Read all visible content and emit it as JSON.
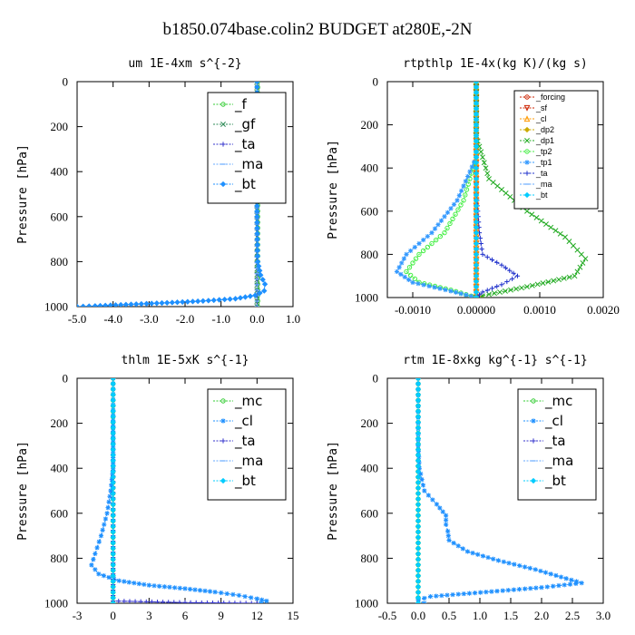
{
  "title": "b1850.074base.colin2  BUDGET at280E,-2N",
  "chart_data": [
    {
      "type": "line",
      "title": "um  1E-4xm s^{-2}",
      "ylabel": "Pressure [hPa]",
      "xlim": [
        -5.0,
        1.0
      ],
      "ylim": [
        0,
        1000
      ],
      "y_inverted": true,
      "xticks": [
        "-5.0",
        "-4.0",
        "-3.0",
        "-2.0",
        "-1.0",
        "0.0",
        "1.0"
      ],
      "yticks": [
        "0",
        "200",
        "400",
        "600",
        "800",
        "1000"
      ],
      "legend_style": "big",
      "legend_position": "top-right",
      "series": [
        {
          "name": "_f",
          "color": "#33cc33",
          "marker": "circle",
          "points": [
            [
              0.02,
              0
            ],
            [
              0.02,
              200
            ],
            [
              0.02,
              400
            ],
            [
              0.02,
              600
            ],
            [
              0.02,
              800
            ],
            [
              0.02,
              1000
            ]
          ]
        },
        {
          "name": "_gf",
          "color": "#2e8b57",
          "marker": "x",
          "points": [
            [
              0.0,
              0
            ],
            [
              0.0,
              500
            ],
            [
              0.0,
              1000
            ]
          ]
        },
        {
          "name": "_ta",
          "color": "#3333cc",
          "marker": "plus",
          "points": [
            [
              0.0,
              0
            ],
            [
              0.0,
              1000
            ]
          ]
        },
        {
          "name": "_ma",
          "color": "#66aaff",
          "marker": "dash",
          "points": [
            [
              0.0,
              0
            ],
            [
              0.0,
              1000
            ]
          ]
        },
        {
          "name": "_bt",
          "color": "#1e90ff",
          "marker": "diamond",
          "points": [
            [
              0.0,
              0
            ],
            [
              0.0,
              600
            ],
            [
              0.02,
              800
            ],
            [
              0.1,
              860
            ],
            [
              0.22,
              900
            ],
            [
              0.2,
              930
            ],
            [
              -0.05,
              950
            ],
            [
              -0.6,
              965
            ],
            [
              -1.5,
              975
            ],
            [
              -2.5,
              983
            ],
            [
              -3.5,
              990
            ],
            [
              -4.5,
              997
            ],
            [
              -5.0,
              1000
            ]
          ]
        }
      ]
    },
    {
      "type": "line",
      "title": "rtpthlp  1E-4x(kg K)/(kg s)",
      "ylabel": "Pressure [hPa]",
      "xlim": [
        -0.0014,
        0.002
      ],
      "ylim": [
        0,
        1000
      ],
      "y_inverted": true,
      "xticks": [
        "-0.0010",
        "0.00000",
        "0.0010",
        "0.0020"
      ],
      "yticks": [
        "0",
        "200",
        "400",
        "600",
        "800",
        "1000"
      ],
      "legend_style": "small",
      "legend_position": "top-right",
      "series": [
        {
          "name": "_forcing",
          "color": "#cc2200",
          "marker": "circle",
          "points": [
            [
              0.0,
              0
            ],
            [
              0.0,
              1000
            ]
          ]
        },
        {
          "name": "_sf",
          "color": "#cc2200",
          "marker": "triangle-down",
          "points": [
            [
              0.0,
              0
            ],
            [
              0.0,
              1000
            ]
          ]
        },
        {
          "name": "_cl",
          "color": "#ff9900",
          "marker": "triangle",
          "points": [
            [
              0.0,
              0
            ],
            [
              0.0,
              980
            ],
            [
              0.0001,
              1000
            ]
          ]
        },
        {
          "name": "_dp2",
          "color": "#ccaa00",
          "marker": "diamond",
          "points": [
            [
              0.0,
              0
            ],
            [
              0.0,
              1000
            ]
          ]
        },
        {
          "name": "_dp1",
          "color": "#22aa22",
          "marker": "x",
          "points": [
            [
              0.0,
              0
            ],
            [
              0.0,
              250
            ],
            [
              0.0002,
              450
            ],
            [
              0.0008,
              600
            ],
            [
              0.0014,
              720
            ],
            [
              0.00172,
              820
            ],
            [
              0.00155,
              900
            ],
            [
              0.0008,
              950
            ],
            [
              0.0002,
              985
            ],
            [
              0.0,
              1000
            ]
          ]
        },
        {
          "name": "_tp2",
          "color": "#44ee44",
          "marker": "circle",
          "points": [
            [
              0.0,
              0
            ],
            [
              0.0,
              350
            ],
            [
              -0.0002,
              550
            ],
            [
              -0.0005,
              700
            ],
            [
              -0.0009,
              800
            ],
            [
              -0.0011,
              880
            ],
            [
              -0.0009,
              930
            ],
            [
              -0.0004,
              965
            ],
            [
              0.0,
              1000
            ]
          ]
        },
        {
          "name": "_tp1",
          "color": "#3399ff",
          "marker": "star",
          "points": [
            [
              0.0,
              0
            ],
            [
              0.0,
              350
            ],
            [
              -0.0003,
              550
            ],
            [
              -0.0007,
              700
            ],
            [
              -0.0011,
              800
            ],
            [
              -0.00125,
              880
            ],
            [
              -0.001,
              930
            ],
            [
              -0.0004,
              970
            ],
            [
              0.0,
              1000
            ]
          ]
        },
        {
          "name": "_ta",
          "color": "#2233cc",
          "marker": "plus",
          "points": [
            [
              0.0,
              0
            ],
            [
              0.0,
              500
            ],
            [
              5e-05,
              700
            ],
            [
              0.0001,
              800
            ],
            [
              0.0004,
              850
            ],
            [
              0.00065,
              900
            ],
            [
              0.0004,
              940
            ],
            [
              0.0001,
              975
            ],
            [
              0.0,
              1000
            ]
          ]
        },
        {
          "name": "_ma",
          "color": "#66aaff",
          "marker": "dash",
          "points": [
            [
              0.0,
              0
            ],
            [
              0.0,
              1000
            ]
          ]
        },
        {
          "name": "_bt",
          "color": "#00ccff",
          "marker": "diamond",
          "points": [
            [
              0.0,
              0
            ],
            [
              0.0,
              1000
            ]
          ]
        }
      ]
    },
    {
      "type": "line",
      "title": "thlm  1E-5xK s^{-1}",
      "ylabel": "Pressure [hPa]",
      "xlim": [
        -3,
        15
      ],
      "ylim": [
        0,
        1000
      ],
      "y_inverted": true,
      "xticks": [
        "-3",
        "0",
        "3",
        "6",
        "9",
        "12",
        "15"
      ],
      "yticks": [
        "0",
        "200",
        "400",
        "600",
        "800",
        "1000"
      ],
      "legend_style": "big",
      "legend_position": "top-right",
      "series": [
        {
          "name": "_mc",
          "color": "#33cc33",
          "marker": "circle",
          "points": [
            [
              0.0,
              0
            ],
            [
              0.0,
              1000
            ]
          ]
        },
        {
          "name": "_cl",
          "color": "#1e90ff",
          "marker": "star",
          "points": [
            [
              0.0,
              0
            ],
            [
              0.0,
              400
            ],
            [
              -0.2,
              500
            ],
            [
              -0.5,
              600
            ],
            [
              -1.0,
              700
            ],
            [
              -1.5,
              780
            ],
            [
              -1.8,
              830
            ],
            [
              -1.2,
              870
            ],
            [
              0.5,
              900
            ],
            [
              3.0,
              920
            ],
            [
              6.0,
              935
            ],
            [
              8.5,
              950
            ],
            [
              10.5,
              965
            ],
            [
              12.0,
              980
            ],
            [
              12.8,
              990
            ],
            [
              12.3,
              1000
            ]
          ]
        },
        {
          "name": "_ta",
          "color": "#3333cc",
          "marker": "plus",
          "points": [
            [
              0.0,
              0
            ],
            [
              0.0,
              990
            ],
            [
              6.0,
              997
            ],
            [
              12.0,
              1000
            ]
          ]
        },
        {
          "name": "_ma",
          "color": "#66aaff",
          "marker": "dash",
          "points": [
            [
              0.0,
              0
            ],
            [
              0.0,
              1000
            ]
          ]
        },
        {
          "name": "_bt",
          "color": "#00ccff",
          "marker": "diamond",
          "points": [
            [
              0.0,
              0
            ],
            [
              0.0,
              1000
            ]
          ]
        }
      ]
    },
    {
      "type": "line",
      "title": "rtm  1E-8xkg kg^{-1} s^{-1}",
      "ylabel": "Pressure [hPa]",
      "xlim": [
        -0.5,
        3.0
      ],
      "ylim": [
        0,
        1000
      ],
      "y_inverted": true,
      "xticks": [
        "-0.5",
        "0.0",
        "0.5",
        "1.0",
        "1.5",
        "2.0",
        "2.5",
        "3.0"
      ],
      "yticks": [
        "0",
        "200",
        "400",
        "600",
        "800",
        "1000"
      ],
      "legend_style": "big",
      "legend_position": "top-right",
      "series": [
        {
          "name": "_mc",
          "color": "#33cc33",
          "marker": "circle",
          "points": [
            [
              0.0,
              0
            ],
            [
              0.0,
              1000
            ]
          ]
        },
        {
          "name": "_cl",
          "color": "#1e90ff",
          "marker": "star",
          "points": [
            [
              0.0,
              0
            ],
            [
              0.0,
              300
            ],
            [
              0.02,
              400
            ],
            [
              0.1,
              500
            ],
            [
              0.3,
              560
            ],
            [
              0.45,
              610
            ],
            [
              0.45,
              650
            ],
            [
              0.48,
              680
            ],
            [
              0.5,
              720
            ],
            [
              0.8,
              770
            ],
            [
              1.3,
              810
            ],
            [
              1.9,
              850
            ],
            [
              2.4,
              890
            ],
            [
              2.65,
              910
            ],
            [
              2.0,
              930
            ],
            [
              1.1,
              950
            ],
            [
              0.2,
              970
            ],
            [
              0.0,
              985
            ],
            [
              0.1,
              1000
            ]
          ]
        },
        {
          "name": "_ta",
          "color": "#3333cc",
          "marker": "plus",
          "points": [
            [
              0.0,
              0
            ],
            [
              0.0,
              1000
            ]
          ]
        },
        {
          "name": "_ma",
          "color": "#66aaff",
          "marker": "dash",
          "points": [
            [
              0.0,
              0
            ],
            [
              0.0,
              1000
            ]
          ]
        },
        {
          "name": "_bt",
          "color": "#00ccff",
          "marker": "diamond",
          "points": [
            [
              0.0,
              0
            ],
            [
              0.0,
              1000
            ]
          ]
        }
      ]
    }
  ]
}
